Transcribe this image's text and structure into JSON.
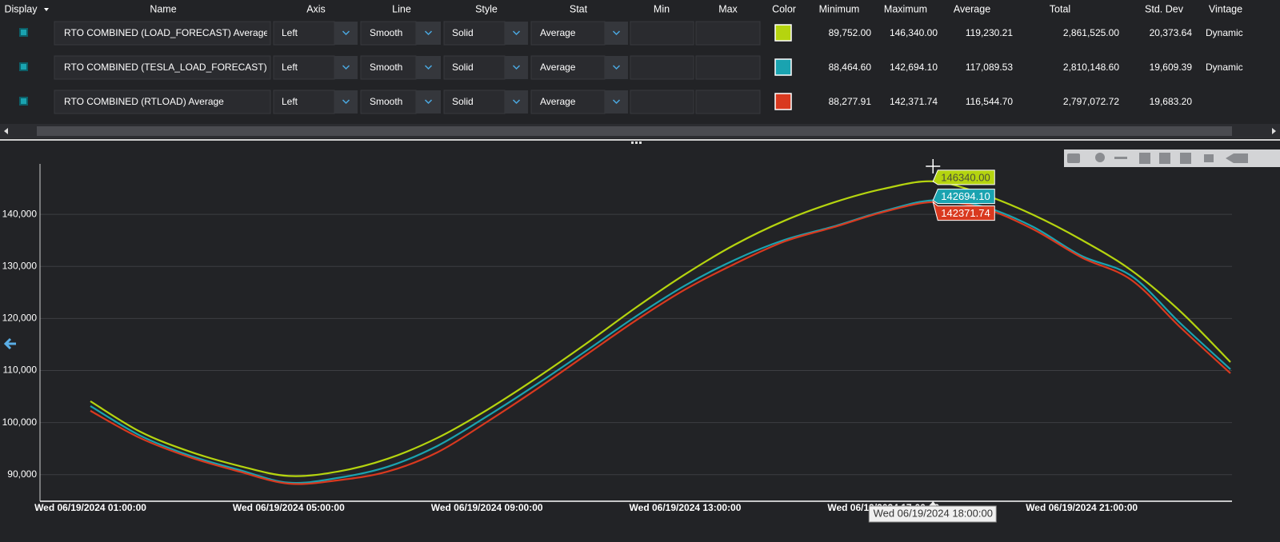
{
  "table": {
    "columns": [
      "Display",
      "Name",
      "Axis",
      "Line",
      "Style",
      "Stat",
      "Min",
      "Max",
      "Color",
      "Minimum",
      "Maximum",
      "Average",
      "Total",
      "Std. Dev",
      "Vintage"
    ],
    "rows": [
      {
        "name": "RTO COMBINED (LOAD_FORECAST) Average",
        "axis": "Left",
        "line": "Smooth",
        "style": "Solid",
        "stat": "Average",
        "minimum": "89,752.00",
        "maximum": "146,340.00",
        "average": "119,230.21",
        "total": "2,861,525.00",
        "std_dev": "20,373.64",
        "vintage": "Dynamic"
      },
      {
        "name": "RTO COMBINED (TESLA_LOAD_FORECAST)",
        "axis": "Left",
        "line": "Smooth",
        "style": "Solid",
        "stat": "Average",
        "minimum": "88,464.60",
        "maximum": "142,694.10",
        "average": "117,089.53",
        "total": "2,810,148.60",
        "std_dev": "19,609.39",
        "vintage": "Dynamic"
      },
      {
        "name": "RTO COMBINED (RTLOAD) Average",
        "axis": "Left",
        "line": "Smooth",
        "style": "Solid",
        "stat": "Average",
        "minimum": "88,277.91",
        "maximum": "142,371.74",
        "average": "116,544.70",
        "total": "2,797,072.72",
        "std_dev": "19,683.20",
        "vintage": null
      }
    ]
  },
  "chart_data": {
    "type": "line",
    "categories": [
      "Wed 06/19/2024 01:00:00",
      null,
      null,
      null,
      "Wed 06/19/2024 05:00:00",
      null,
      null,
      null,
      "Wed 06/19/2024 09:00:00",
      null,
      null,
      null,
      "Wed 06/19/2024 13:00:00",
      null,
      null,
      null,
      "Wed 06/19/2024 17:00:00",
      null,
      null,
      null,
      "Wed 06/19/2024 21:00:00",
      null,
      null,
      null
    ],
    "series": [
      {
        "color": "#b5d40f",
        "values": [
          104110,
          98280,
          94450,
          91690,
          89752,
          90610,
          93070,
          97060,
          102420,
          108560,
          115150,
          122060,
          128500,
          134170,
          138770,
          142300,
          144910,
          146340,
          143900,
          140000,
          135090,
          129260,
          121290,
          111630
        ],
        "value_labels": [
          null,
          null,
          null,
          null,
          null,
          null,
          null,
          null,
          null,
          null,
          null,
          null,
          null,
          null,
          null,
          null,
          null,
          "146340.00",
          null,
          null,
          null,
          null,
          null,
          null
        ]
      },
      {
        "color": "#1aa3b0",
        "values": [
          103190,
          97520,
          93680,
          90920,
          88465,
          89390,
          91530,
          95520,
          101200,
          107330,
          113770,
          120370,
          126350,
          131260,
          135090,
          137700,
          140610,
          142694.1,
          141530,
          137700,
          132020,
          128190,
          118990,
          110250
        ],
        "value_labels": [
          null,
          null,
          null,
          null,
          null,
          null,
          null,
          null,
          null,
          null,
          null,
          null,
          null,
          null,
          null,
          null,
          null,
          "142694.10",
          null,
          null,
          null,
          null,
          null,
          null
        ]
      },
      {
        "color": "#d9391f",
        "values": [
          102270,
          97060,
          93370,
          90610,
          88278,
          88930,
          90610,
          94290,
          100120,
          106410,
          113010,
          119600,
          125580,
          130490,
          134790,
          137550,
          140460,
          142371.74,
          141230,
          137240,
          131720,
          127420,
          118220,
          109480
        ],
        "value_labels": [
          null,
          null,
          null,
          null,
          null,
          null,
          null,
          null,
          null,
          null,
          null,
          null,
          null,
          null,
          null,
          null,
          null,
          "142371.74",
          null,
          null,
          null,
          null,
          null,
          null
        ]
      }
    ],
    "ylim": [
      84900,
      149700
    ],
    "yticks": [
      {
        "value": 90000,
        "label": "90,000"
      },
      {
        "value": 100000,
        "label": "100,000"
      },
      {
        "value": 110000,
        "label": "110,000"
      },
      {
        "value": 120000,
        "label": "120,000"
      },
      {
        "value": 130000,
        "label": "130,000"
      },
      {
        "value": 140000,
        "label": "140,000"
      }
    ],
    "grid": true,
    "hover_label": "Wed 06/19/2024 18:00:00"
  }
}
